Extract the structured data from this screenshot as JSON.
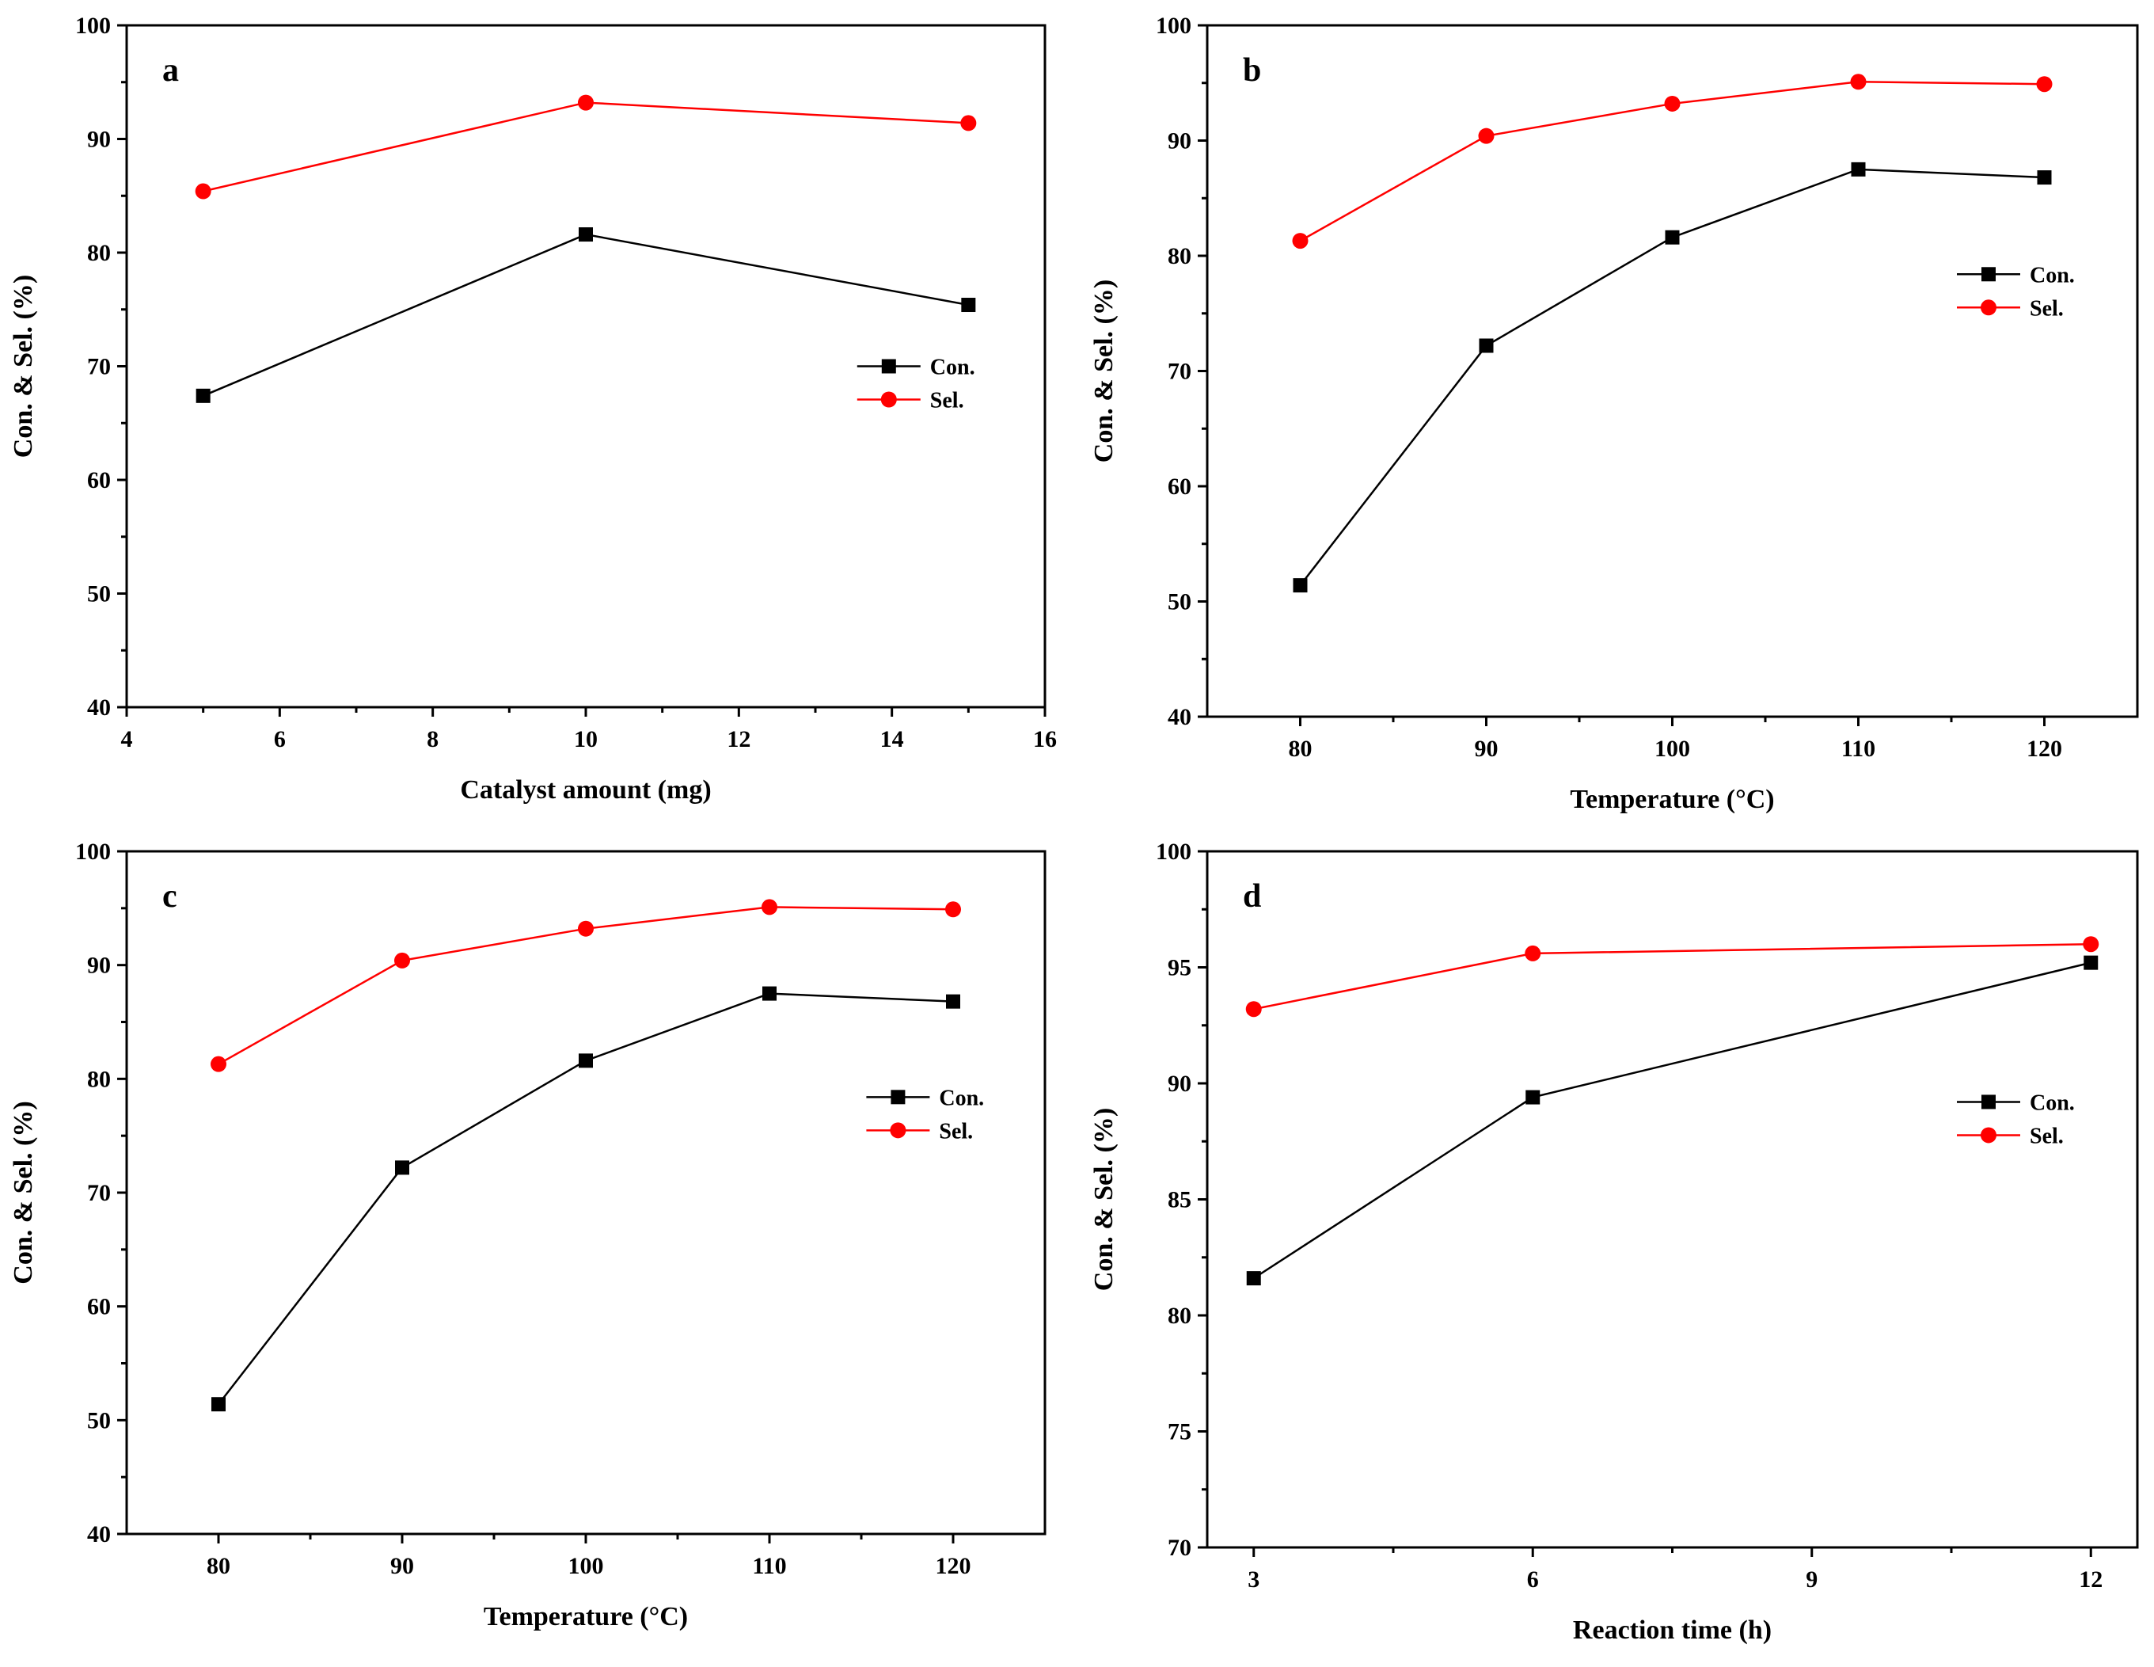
{
  "chart_data": [
    {
      "type": "line",
      "panel": "a",
      "xlabel": "Catalyst amount (mg)",
      "ylabel": "Con. & Sel. (%)",
      "xlim": [
        4,
        16
      ],
      "ylim": [
        40,
        100
      ],
      "xticks": [
        4,
        6,
        8,
        10,
        12,
        14,
        16
      ],
      "yticks": [
        40,
        50,
        60,
        70,
        80,
        90,
        100
      ],
      "x": [
        5,
        10,
        15
      ],
      "legend_position": "right-middle",
      "series": [
        {
          "name": "Con.",
          "color": "#000000",
          "marker": "square",
          "values": [
            67.4,
            81.6,
            75.4
          ]
        },
        {
          "name": "Sel.",
          "color": "#ff0000",
          "marker": "circle",
          "values": [
            85.4,
            93.2,
            91.4
          ]
        }
      ]
    },
    {
      "type": "line",
      "panel": "b",
      "xlabel": "Temperature (°C)",
      "ylabel": "Con. & Sel. (%)",
      "xlim": [
        75,
        125
      ],
      "ylim": [
        40,
        100
      ],
      "xticks": [
        80,
        90,
        100,
        110,
        120
      ],
      "yticks": [
        40,
        50,
        60,
        70,
        80,
        90,
        100
      ],
      "x": [
        80,
        90,
        100,
        110,
        120
      ],
      "legend_position": "right-upper",
      "series": [
        {
          "name": "Con.",
          "color": "#000000",
          "marker": "square",
          "values": [
            51.4,
            72.2,
            81.6,
            87.5,
            86.8
          ]
        },
        {
          "name": "Sel.",
          "color": "#ff0000",
          "marker": "circle",
          "values": [
            81.3,
            90.4,
            93.2,
            95.1,
            94.9
          ]
        }
      ]
    },
    {
      "type": "line",
      "panel": "c",
      "xlabel": "Temperature (°C)",
      "ylabel": "Con. & Sel. (%)",
      "xlim": [
        75,
        125
      ],
      "ylim": [
        40,
        100
      ],
      "xticks": [
        80,
        90,
        100,
        110,
        120
      ],
      "yticks": [
        40,
        50,
        60,
        70,
        80,
        90,
        100
      ],
      "x": [
        80,
        90,
        100,
        110,
        120
      ],
      "legend_position": "right-upper",
      "series": [
        {
          "name": "Con.",
          "color": "#000000",
          "marker": "square",
          "values": [
            51.4,
            72.2,
            81.6,
            87.5,
            86.8
          ]
        },
        {
          "name": "Sel.",
          "color": "#ff0000",
          "marker": "circle",
          "values": [
            81.3,
            90.4,
            93.2,
            95.1,
            94.9
          ]
        }
      ]
    },
    {
      "type": "line",
      "panel": "d",
      "xlabel": "Reaction time (h)",
      "ylabel": "Con. & Sel. (%)",
      "xlim": [
        2.5,
        12.5
      ],
      "ylim": [
        70,
        100
      ],
      "xticks": [
        3,
        6,
        9,
        12
      ],
      "yticks": [
        70,
        75,
        80,
        85,
        90,
        95,
        100
      ],
      "x": [
        3,
        6,
        12
      ],
      "legend_position": "right-upper",
      "series": [
        {
          "name": "Con.",
          "color": "#000000",
          "marker": "square",
          "values": [
            81.6,
            89.4,
            95.2
          ]
        },
        {
          "name": "Sel.",
          "color": "#ff0000",
          "marker": "circle",
          "values": [
            93.2,
            95.6,
            96.0
          ]
        }
      ]
    }
  ]
}
